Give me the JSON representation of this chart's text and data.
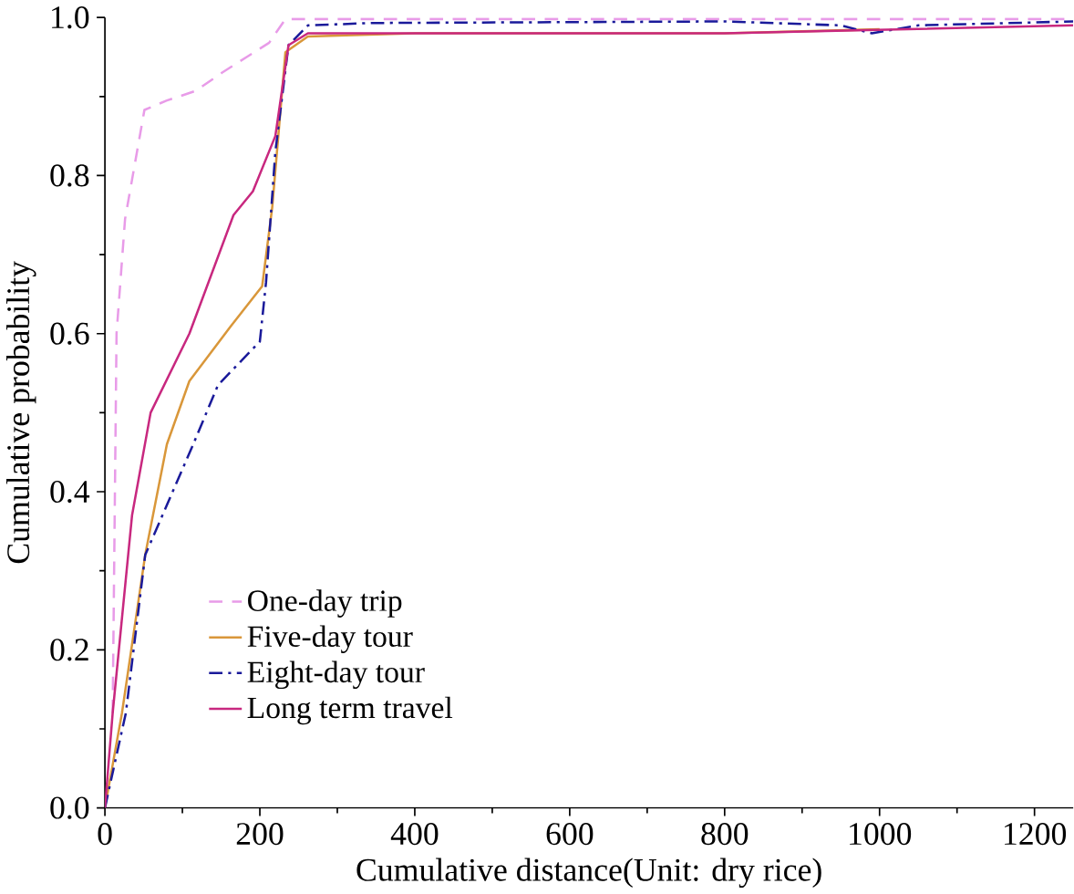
{
  "chart_data": {
    "type": "line",
    "xlabel": "Cumulative distance(Unit: dry rice)",
    "ylabel": "Cumulative probability",
    "xlim": [
      0,
      1250
    ],
    "ylim": [
      0,
      1.0
    ],
    "xticks": [
      0,
      200,
      400,
      600,
      800,
      1000,
      1200
    ],
    "yticks": [
      {
        "value": 0,
        "label": "0.0"
      },
      {
        "value": 0.2,
        "label": "0.2"
      },
      {
        "value": 0.4,
        "label": "0.4"
      },
      {
        "value": 0.6,
        "label": "0.6"
      },
      {
        "value": 0.8,
        "label": "0.8"
      },
      {
        "value": 1.0,
        "label": "1.0"
      }
    ],
    "legend": "bottom left",
    "grid": false,
    "marker": "none",
    "series": [
      {
        "name": "One-day trip",
        "color": "#e89be8",
        "line_style": "dashed",
        "x": [
          10,
          15,
          26,
          51,
          80,
          117,
          151,
          183,
          212,
          233,
          400,
          800,
          1250
        ],
        "values": [
          0.12,
          0.6,
          0.745,
          0.883,
          0.895,
          0.907,
          0.93,
          0.95,
          0.968,
          0.998,
          0.998,
          0.998,
          0.998
        ]
      },
      {
        "name": "Five-day tour",
        "color": "#d9973a",
        "line_style": "solid",
        "x": [
          0,
          22,
          52,
          80,
          109,
          163,
          203,
          216,
          233,
          262,
          400,
          800,
          1000
        ],
        "values": [
          0,
          0.12,
          0.32,
          0.46,
          0.54,
          0.61,
          0.66,
          0.76,
          0.956,
          0.976,
          0.98,
          0.98,
          0.985
        ]
      },
      {
        "name": "Eight-day tour",
        "color": "#1a1a9a",
        "line_style": "dashdot",
        "x": [
          0,
          27,
          52,
          114,
          146,
          200,
          208,
          220,
          237,
          262,
          345,
          800,
          950,
          990,
          1050,
          1250
        ],
        "values": [
          0,
          0.12,
          0.32,
          0.46,
          0.535,
          0.59,
          0.665,
          0.83,
          0.965,
          0.99,
          0.993,
          0.995,
          0.99,
          0.98,
          0.99,
          0.995
        ]
      },
      {
        "name": "Long term travel",
        "color": "#c8287f",
        "line_style": "solid",
        "x": [
          0,
          10,
          35,
          59,
          109,
          166,
          191,
          220,
          237,
          262,
          400,
          800,
          1250
        ],
        "values": [
          0,
          0.12,
          0.37,
          0.5,
          0.6,
          0.75,
          0.78,
          0.85,
          0.965,
          0.98,
          0.98,
          0.98,
          0.99
        ]
      }
    ]
  }
}
